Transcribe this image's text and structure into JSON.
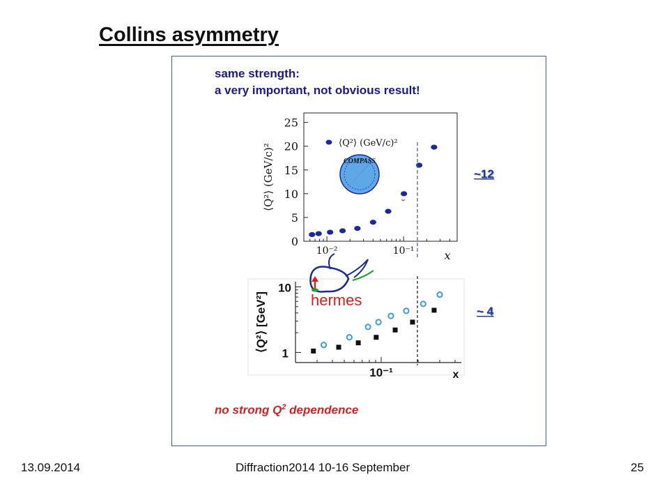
{
  "slide": {
    "title": "Collins asymmetry",
    "note_line1": "same strength:",
    "note_line2": "a very important, not obvious result!",
    "callout_compass": "~12",
    "callout_hermes": "~ 4",
    "bottom_note_pre": "no strong Q",
    "bottom_note_sup": "2",
    "bottom_note_post": " dependence",
    "footer_date": "13.09.2014",
    "footer_conf": "Diffraction2014 10-16 September",
    "footer_page": "25"
  },
  "colors": {
    "compass_points": "#1a2a9c",
    "hermes_open": "#3a9be0",
    "hermes_filled": "#111111",
    "guide_line": "#3a5aa8",
    "red": "#d81e1e"
  },
  "logos": {
    "compass": "COMPASS",
    "hermes": "hermes"
  },
  "chart_data": [
    {
      "type": "scatter",
      "name": "COMPASS",
      "xlabel": "x",
      "ylabel": "⟨Q²⟩ (GeV/c)²",
      "xscale": "log",
      "xlim": [
        0.005,
        0.5
      ],
      "ylim": [
        0,
        27
      ],
      "yticks": [
        0,
        5,
        10,
        15,
        20,
        25
      ],
      "ytick_labels": [
        "0",
        "5",
        "10",
        "15",
        "20",
        "25"
      ],
      "xticks": [
        0.01,
        0.1
      ],
      "xtick_labels": [
        "10⁻²",
        "10⁻¹"
      ],
      "legend": "⟨Q²⟩ (GeV/c)²",
      "series": [
        {
          "x": [
            0.0064,
            0.0078,
            0.011,
            0.016,
            0.025,
            0.04,
            0.063,
            0.101,
            0.16,
            0.25
          ],
          "y": [
            1.4,
            1.6,
            1.9,
            2.2,
            2.7,
            4.0,
            6.3,
            10.0,
            16.0,
            19.8
          ]
        }
      ],
      "marker_line": 0.16
    },
    {
      "type": "scatter",
      "xlabel": "x",
      "ylabel": "⟨Q²⟩ [GeV²]",
      "xscale": "log",
      "yscale": "log",
      "xlim": [
        0.02,
        0.45
      ],
      "ylim": [
        0.7,
        12
      ],
      "ytick_labels": [
        "1",
        "10"
      ],
      "xtick_labels": [
        "10⁻¹"
      ],
      "series": [
        {
          "marker": "open-circle",
          "x": [
            0.034,
            0.055,
            0.078,
            0.095,
            0.12,
            0.16,
            0.22,
            0.3
          ],
          "y": [
            1.3,
            1.7,
            2.45,
            2.9,
            3.6,
            4.3,
            5.5,
            7.6
          ]
        },
        {
          "marker": "filled-square",
          "x": [
            0.028,
            0.045,
            0.065,
            0.091,
            0.13,
            0.18,
            0.27
          ],
          "y": [
            1.05,
            1.2,
            1.4,
            1.7,
            2.2,
            2.9,
            4.4
          ]
        }
      ],
      "marker_line": 0.16
    }
  ]
}
